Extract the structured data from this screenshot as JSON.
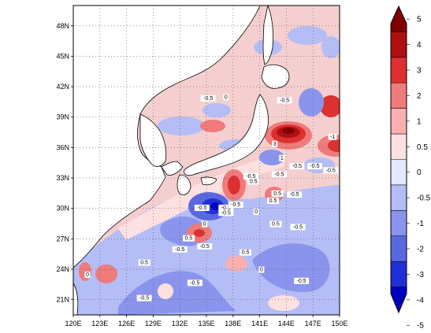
{
  "map": {
    "lon_ticks": [
      "120E",
      "123E",
      "126E",
      "129E",
      "132E",
      "135E",
      "138E",
      "141E",
      "144E",
      "147E",
      "150E"
    ],
    "lat_ticks": [
      "21N",
      "24N",
      "27N",
      "30N",
      "33N",
      "36N",
      "39N",
      "42N",
      "45N",
      "48N"
    ],
    "lon_range": [
      120,
      150
    ],
    "lat_range": [
      19.5,
      50
    ],
    "grid": "dotted",
    "land_color": "#ffffff",
    "contour_labels": [
      {
        "text": "-0.5",
        "lon": 135.2,
        "lat": 40.7
      },
      {
        "text": "0",
        "lon": 137.2,
        "lat": 40.8
      },
      {
        "text": "-0.5",
        "lon": 143.8,
        "lat": 40.5
      },
      {
        "text": "-1",
        "lon": 149.2,
        "lat": 36.9
      },
      {
        "text": "3",
        "lon": 142.7,
        "lat": 36.2
      },
      {
        "text": "1",
        "lon": 143.5,
        "lat": 34.8
      },
      {
        "text": "-0.5",
        "lon": 145.2,
        "lat": 34.0
      },
      {
        "text": "-0.5",
        "lon": 147.2,
        "lat": 34.0
      },
      {
        "text": "-0.5",
        "lon": 149.0,
        "lat": 33.6
      },
      {
        "text": "-0.5",
        "lon": 140.0,
        "lat": 33.0
      },
      {
        "text": "-0.5",
        "lon": 143.2,
        "lat": 33.2
      },
      {
        "text": "0.5",
        "lon": 140.3,
        "lat": 32.5
      },
      {
        "text": "0.5",
        "lon": 143.0,
        "lat": 31.3
      },
      {
        "text": "-0.5",
        "lon": 144.9,
        "lat": 31.2
      },
      {
        "text": "0.5",
        "lon": 142.5,
        "lat": 30.6
      },
      {
        "text": "-0.5",
        "lon": 134.5,
        "lat": 29.9
      },
      {
        "text": "-0.5",
        "lon": 137.2,
        "lat": 29.9
      },
      {
        "text": "-0.5",
        "lon": 138.3,
        "lat": 30.2
      },
      {
        "text": "-0.5",
        "lon": 137.2,
        "lat": 29.4
      },
      {
        "text": "0",
        "lon": 140.6,
        "lat": 29.5
      },
      {
        "text": "0",
        "lon": 134.8,
        "lat": 28.3
      },
      {
        "text": "0.5",
        "lon": 142.8,
        "lat": 28.3
      },
      {
        "text": "-0.5",
        "lon": 145.3,
        "lat": 28.0
      },
      {
        "text": "-0.5",
        "lon": 132.0,
        "lat": 25.8
      },
      {
        "text": "-0.5",
        "lon": 134.8,
        "lat": 26.1
      },
      {
        "text": "0.5",
        "lon": 139.4,
        "lat": 25.5
      },
      {
        "text": "0",
        "lon": 141.2,
        "lat": 23.8
      },
      {
        "text": "-0.5",
        "lon": 133.7,
        "lat": 22.5
      },
      {
        "text": "-0.5",
        "lon": 145.7,
        "lat": 22.7
      },
      {
        "text": "-0.5",
        "lon": 128.0,
        "lat": 21.0
      },
      {
        "text": "0.5",
        "lon": 133.0,
        "lat": 26.9
      },
      {
        "text": "0.5",
        "lon": 128.0,
        "lat": 24.5
      },
      {
        "text": "0",
        "lon": 121.6,
        "lat": 23.3
      }
    ]
  },
  "colorbar": {
    "labels": [
      "5",
      "4",
      "3",
      "2",
      "1",
      "0.5",
      "0",
      "-0.5",
      "-1",
      "-2",
      "-3",
      "-4",
      "-5"
    ],
    "colors": [
      "#800000",
      "#b01010",
      "#dd3030",
      "#ef7b7b",
      "#f8b0b0",
      "#fde0e0",
      "#e6e8fb",
      "#b4bdf5",
      "#8a94ec",
      "#5a68e0",
      "#2030d8",
      "#0000c0"
    ]
  }
}
